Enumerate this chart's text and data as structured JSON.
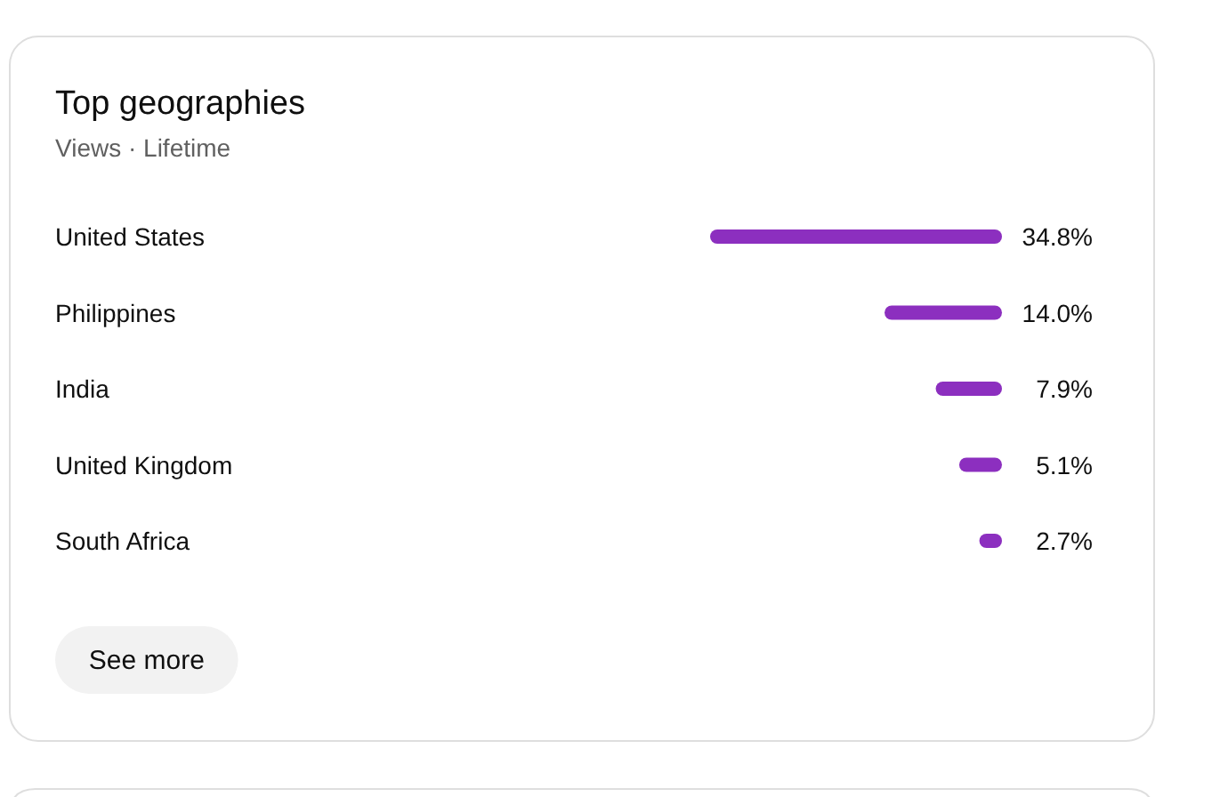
{
  "chart_data": {
    "type": "bar",
    "orientation": "horizontal",
    "title": "Top geographies",
    "subtitle": "Views · Lifetime",
    "categories": [
      "United States",
      "Philippines",
      "India",
      "United Kingdom",
      "South Africa"
    ],
    "values": [
      34.8,
      14.0,
      7.9,
      5.1,
      2.7
    ],
    "value_labels": [
      "34.8%",
      "14.0%",
      "7.9%",
      "5.1%",
      "2.7%"
    ],
    "color": "#8c2fbf",
    "annotations": [
      "See more"
    ]
  }
}
